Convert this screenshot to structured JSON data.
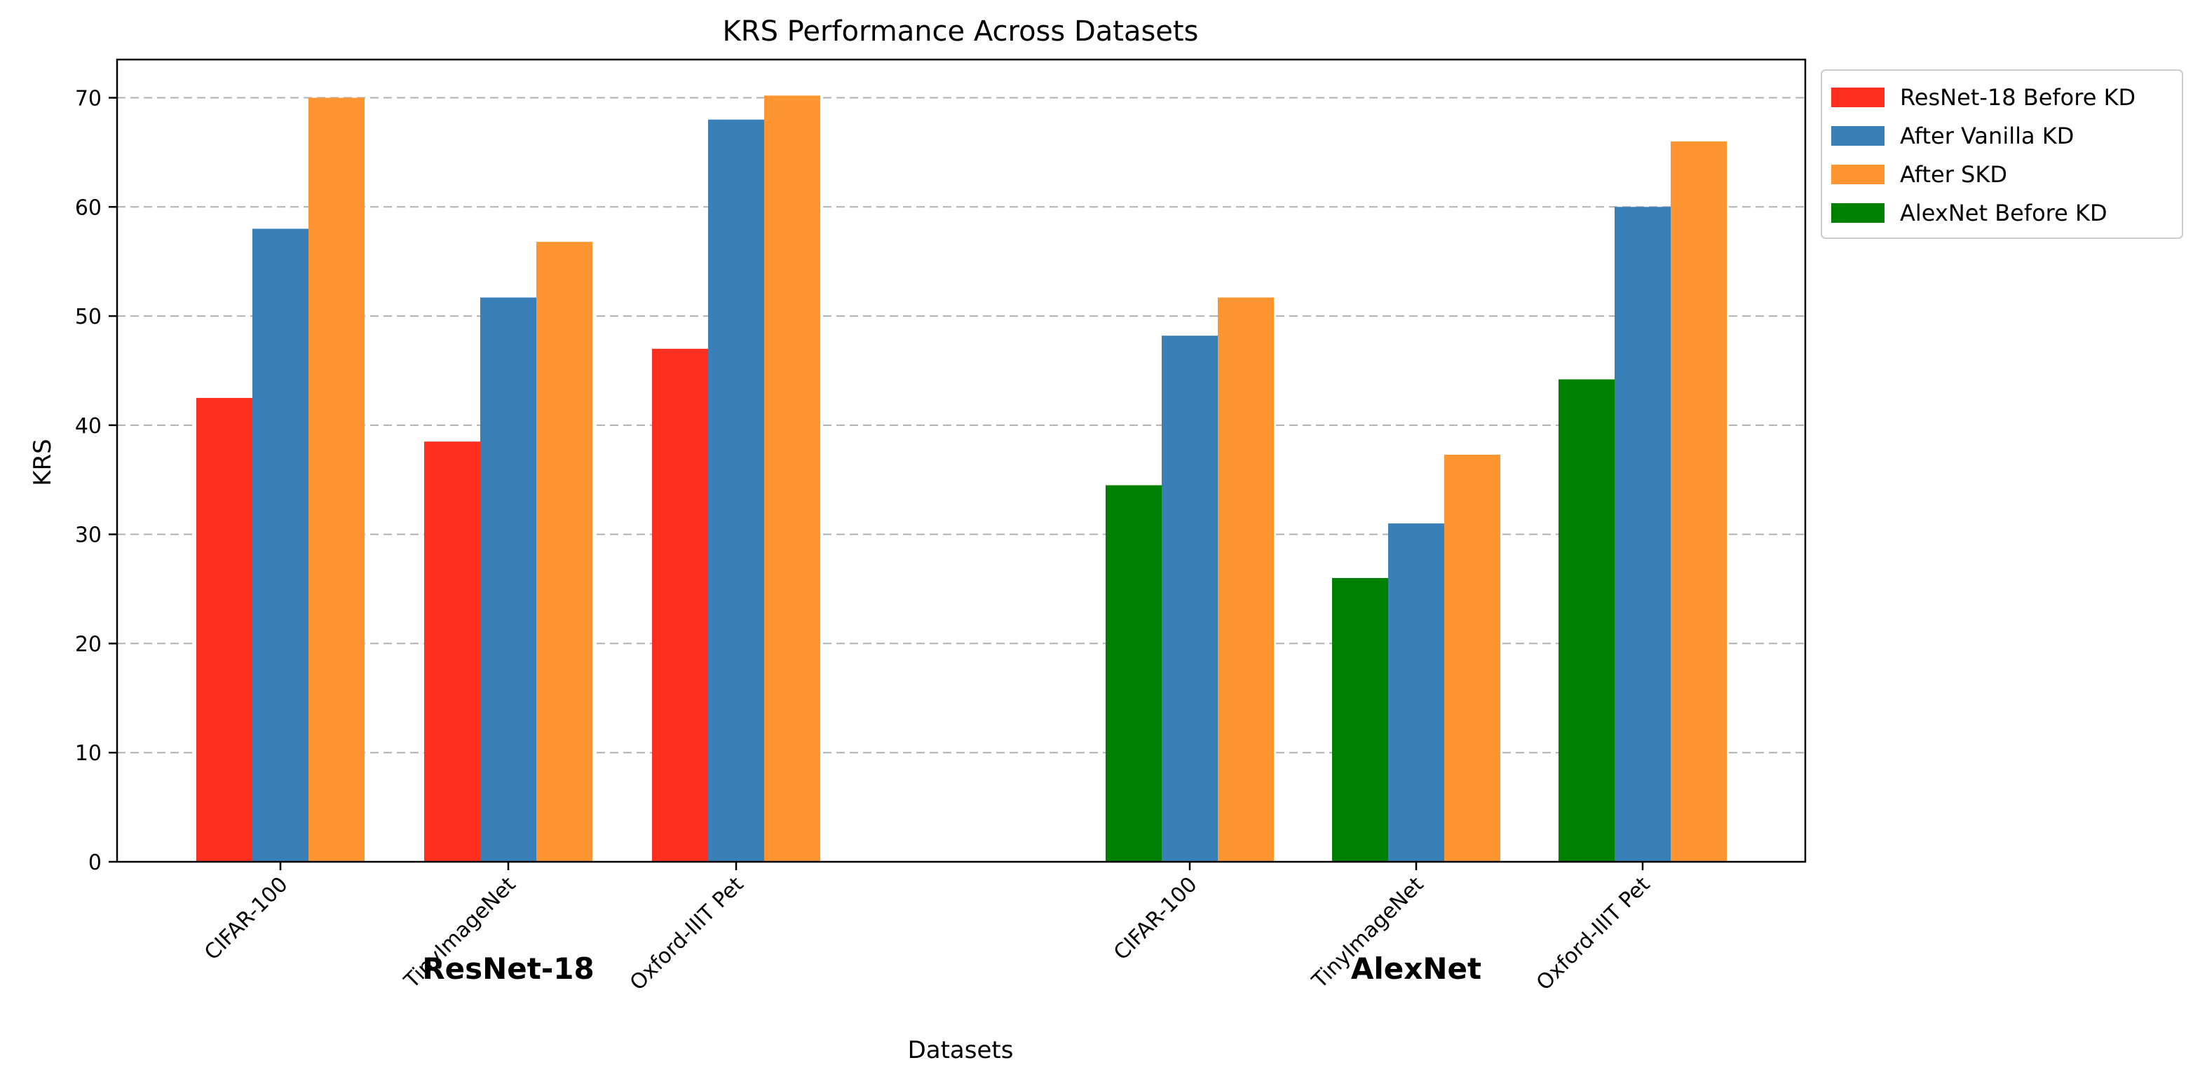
{
  "chart_data": {
    "type": "bar",
    "title": "KRS Performance Across Datasets",
    "xlabel": "Datasets",
    "ylabel": "KRS",
    "ylim": [
      0,
      73.5
    ],
    "yticks": [
      0,
      10,
      20,
      30,
      40,
      50,
      60,
      70
    ],
    "grid": "y-dashed",
    "legend_position": "outside-top-right",
    "groups": [
      {
        "name": "ResNet-18",
        "categories": [
          "CIFAR-100",
          "TinyImageNet",
          "Oxford-IIIT Pet"
        ],
        "series": [
          {
            "name": "ResNet-18 Before KD",
            "color": "#ff2f1f",
            "values": [
              42.5,
              38.5,
              47.0
            ]
          },
          {
            "name": "After Vanilla KD",
            "color": "#3a80b8",
            "values": [
              58.0,
              51.7,
              68.0
            ]
          },
          {
            "name": "After SKD",
            "color": "#ff9530",
            "values": [
              70.0,
              56.8,
              70.2
            ]
          }
        ]
      },
      {
        "name": "AlexNet",
        "categories": [
          "CIFAR-100",
          "TinyImageNet",
          "Oxford-IIIT Pet"
        ],
        "series": [
          {
            "name": "AlexNet Before KD",
            "color": "#008000",
            "values": [
              34.5,
              26.0,
              44.2
            ]
          },
          {
            "name": "After Vanilla KD",
            "color": "#3a80b8",
            "values": [
              48.2,
              31.0,
              60.0
            ]
          },
          {
            "name": "After SKD",
            "color": "#ff9530",
            "values": [
              51.7,
              37.3,
              66.0
            ]
          }
        ]
      }
    ],
    "legend": [
      {
        "label": "ResNet-18 Before KD",
        "color": "#ff2f1f"
      },
      {
        "label": "After Vanilla KD",
        "color": "#3a80b8"
      },
      {
        "label": "After SKD",
        "color": "#ff9530"
      },
      {
        "label": "AlexNet Before KD",
        "color": "#008000"
      }
    ]
  }
}
